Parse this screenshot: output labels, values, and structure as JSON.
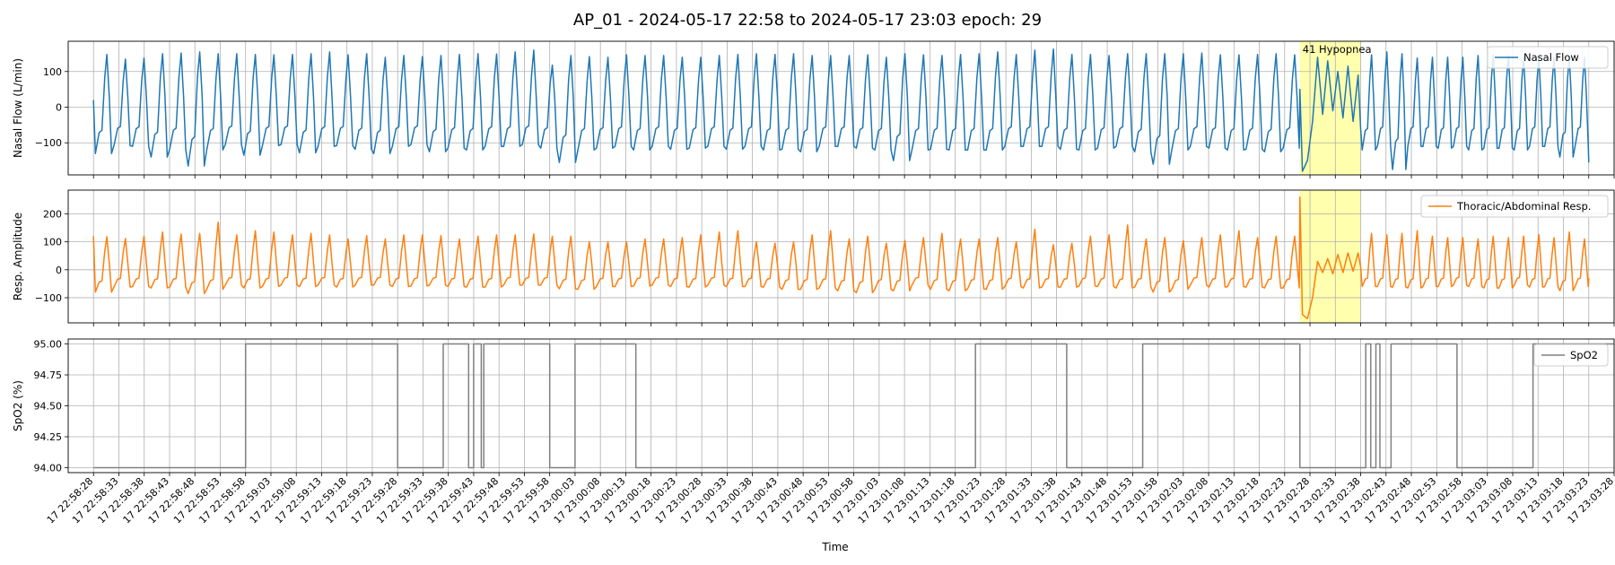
{
  "suptitle": "AP_01 - 2024-05-17 22:58 to 2024-05-17 23:03 epoch: 29",
  "xlabel": "Time",
  "event_label": "41 Hypopnea",
  "colors": {
    "flow": "#1f77b4",
    "resp": "#ff7f0e",
    "spo2": "#808080",
    "event_band": "#ffff99",
    "grid": "#b0b0b0"
  },
  "x_tick_labels": [
    "17 22:58:28",
    "17 22:58:33",
    "17 22:58:38",
    "17 22:58:43",
    "17 22:58:48",
    "17 22:58:53",
    "17 22:58:58",
    "17 22:59:03",
    "17 22:59:08",
    "17 22:59:13",
    "17 22:59:18",
    "17 22:59:23",
    "17 22:59:28",
    "17 22:59:33",
    "17 22:59:38",
    "17 22:59:43",
    "17 22:59:48",
    "17 22:59:53",
    "17 22:59:58",
    "17 23:00:03",
    "17 23:00:08",
    "17 23:00:13",
    "17 23:00:18",
    "17 23:00:23",
    "17 23:00:28",
    "17 23:00:33",
    "17 23:00:38",
    "17 23:00:43",
    "17 23:00:48",
    "17 23:00:53",
    "17 23:00:58",
    "17 23:01:03",
    "17 23:01:08",
    "17 23:01:13",
    "17 23:01:18",
    "17 23:01:23",
    "17 23:01:28",
    "17 23:01:33",
    "17 23:01:38",
    "17 23:01:43",
    "17 23:01:48",
    "17 23:01:53",
    "17 23:01:58",
    "17 23:02:03",
    "17 23:02:08",
    "17 23:02:13",
    "17 23:02:18",
    "17 23:02:23",
    "17 23:02:28",
    "17 23:02:33",
    "17 23:02:38",
    "17 23:02:43",
    "17 23:02:48",
    "17 23:02:53",
    "17 23:02:58",
    "17 23:03:03",
    "17 23:03:08",
    "17 23:03:13",
    "17 23:03:18",
    "17 23:03:23",
    "17 23:03:28"
  ],
  "chart_data": [
    {
      "type": "line",
      "ylabel": "Nasal Flow (L/min)",
      "legend": "Nasal Flow",
      "legend_position": "top-right",
      "grid": true,
      "xlim": [
        "2024-05-17 22:58:23",
        "2024-05-17 23:03:28"
      ],
      "ylim": [
        -190,
        185
      ],
      "y_ticks": [
        -100,
        0,
        100
      ],
      "y_tick_labels": [
        "−100",
        "0",
        "100"
      ],
      "event": {
        "start": "2024-05-17 23:02:26",
        "end": "2024-05-17 23:02:38"
      },
      "series": [
        {
          "name": "Nasal Flow",
          "breath_peaks": [
            148,
            135,
            138,
            150,
            152,
            155,
            150,
            150,
            148,
            147,
            148,
            150,
            155,
            147,
            150,
            140,
            145,
            142,
            145,
            148,
            150,
            149,
            155,
            160,
            118,
            145,
            142,
            140,
            147,
            145,
            145,
            140,
            140,
            145,
            148,
            150,
            148,
            150,
            145,
            145,
            145,
            147,
            140,
            150,
            147,
            145,
            148,
            150,
            155,
            148,
            160,
            163,
            148,
            148,
            145,
            150,
            150,
            150,
            150,
            152,
            147,
            147,
            148,
            150,
            147,
            147,
            155,
            150,
            138,
            140,
            140,
            140,
            145,
            147,
            145,
            140,
            138,
            140,
            140,
            140
          ],
          "breath_troughs": [
            -130,
            -108,
            -110,
            -140,
            -118,
            -165,
            -120,
            -105,
            -135,
            -108,
            -105,
            -128,
            -110,
            -108,
            -118,
            -130,
            -110,
            -105,
            -125,
            -115,
            -120,
            -110,
            -110,
            -105,
            -115,
            -155,
            -120,
            -115,
            -110,
            -120,
            -110,
            -118,
            -115,
            -110,
            -118,
            -110,
            -120,
            -118,
            -125,
            -110,
            -110,
            -115,
            -120,
            -150,
            -120,
            -118,
            -120,
            -120,
            -120,
            -110,
            -110,
            -110,
            -118,
            -120,
            -115,
            -110,
            -125,
            -160,
            -120,
            -110,
            -115,
            -120,
            -118,
            -125,
            -115,
            -120,
            -110,
            -175,
            -110,
            -110,
            -115,
            -110,
            -120,
            -115,
            -115,
            -120,
            -110,
            -110,
            -140,
            -110
          ],
          "start_value": 20,
          "end_value": -155,
          "event_segment": [
            [
              0,
              50
            ],
            [
              0.5,
              -180
            ],
            [
              1.5,
              -150
            ],
            [
              2.5,
              -40
            ],
            [
              3.5,
              140
            ],
            [
              4.5,
              -20
            ],
            [
              5.5,
              130
            ],
            [
              6.5,
              -10
            ],
            [
              7.5,
              100
            ],
            [
              8.5,
              -30
            ],
            [
              9.5,
              115
            ],
            [
              10.5,
              -40
            ],
            [
              11.5,
              90
            ],
            [
              12,
              -60
            ]
          ]
        }
      ]
    },
    {
      "type": "line",
      "ylabel": "Resp. Amplitude",
      "legend": "Thoracic/Abdominal Resp.",
      "legend_position": "top-right",
      "grid": true,
      "xlim": [
        "2024-05-17 22:58:23",
        "2024-05-17 23:03:28"
      ],
      "ylim": [
        -190,
        285
      ],
      "y_ticks": [
        -100,
        0,
        100,
        200
      ],
      "y_tick_labels": [
        "−100",
        "0",
        "100",
        "200"
      ],
      "event": {
        "start": "2024-05-17 23:02:26",
        "end": "2024-05-17 23:02:38"
      },
      "series": [
        {
          "name": "Thoracic/Abdominal Resp.",
          "breath_peaks": [
            118,
            112,
            120,
            135,
            128,
            130,
            170,
            125,
            140,
            135,
            125,
            130,
            125,
            110,
            122,
            110,
            125,
            125,
            122,
            110,
            120,
            125,
            125,
            128,
            120,
            120,
            100,
            100,
            100,
            110,
            110,
            115,
            125,
            135,
            140,
            100,
            95,
            100,
            125,
            140,
            110,
            120,
            95,
            105,
            115,
            130,
            110,
            110,
            115,
            100,
            145,
            90,
            95,
            120,
            125,
            160,
            110,
            115,
            105,
            115,
            125,
            140,
            115,
            120,
            120,
            130,
            125,
            130,
            140,
            120,
            115,
            115,
            110,
            120,
            115,
            120,
            125,
            115,
            135,
            110
          ],
          "breath_troughs": [
            -80,
            -62,
            -60,
            -65,
            -62,
            -85,
            -70,
            -55,
            -65,
            -60,
            -55,
            -60,
            -55,
            -62,
            -55,
            -55,
            -60,
            -58,
            -55,
            -60,
            -62,
            -62,
            -55,
            -55,
            -55,
            -68,
            -70,
            -60,
            -60,
            -58,
            -55,
            -60,
            -62,
            -55,
            -60,
            -60,
            -62,
            -70,
            -70,
            -65,
            -75,
            -82,
            -70,
            -75,
            -55,
            -70,
            -75,
            -68,
            -70,
            -60,
            -65,
            -62,
            -62,
            -58,
            -60,
            -65,
            -62,
            -80,
            -70,
            -55,
            -62,
            -60,
            -62,
            -65,
            -65,
            -60,
            -60,
            -62,
            -65,
            -60,
            -60,
            -55,
            -60,
            -65,
            -65,
            -55,
            -62,
            -60,
            -75,
            -60
          ],
          "start_value": 120,
          "end_value": -30,
          "event_segment": [
            [
              0,
              260
            ],
            [
              0.5,
              -160
            ],
            [
              1.5,
              -175
            ],
            [
              2.5,
              -100
            ],
            [
              3.5,
              30
            ],
            [
              4.5,
              -10
            ],
            [
              5.5,
              40
            ],
            [
              6.5,
              -15
            ],
            [
              7.5,
              55
            ],
            [
              8.5,
              -10
            ],
            [
              9.5,
              60
            ],
            [
              10.5,
              -5
            ],
            [
              11.5,
              60
            ],
            [
              12,
              10
            ]
          ]
        }
      ]
    },
    {
      "type": "line",
      "ylabel": "SpO2 (%)",
      "legend": "SpO2",
      "legend_position": "top-right",
      "grid": true,
      "xlim": [
        "2024-05-17 22:58:23",
        "2024-05-17 23:03:28"
      ],
      "ylim": [
        93.96,
        95.04
      ],
      "y_ticks": [
        94.0,
        94.25,
        94.5,
        94.75,
        95.0
      ],
      "y_tick_labels": [
        "94.00",
        "94.25",
        "94.50",
        "94.75",
        "95.00"
      ],
      "series": [
        {
          "name": "SpO2",
          "segments": [
            {
              "from": "22:58:28",
              "to": "22:58:58",
              "value": 94
            },
            {
              "from": "22:58:58",
              "to": "22:59:28",
              "value": 95
            },
            {
              "from": "22:59:28",
              "to": "22:59:37",
              "value": 94
            },
            {
              "from": "22:59:37",
              "to": "22:59:42",
              "value": 95
            },
            {
              "from": "22:59:42",
              "to": "22:59:43",
              "value": 94
            },
            {
              "from": "22:59:43",
              "to": "22:59:44.5",
              "value": 95
            },
            {
              "from": "22:59:44.5",
              "to": "22:59:45",
              "value": 94
            },
            {
              "from": "22:59:45",
              "to": "22:59:58",
              "value": 95
            },
            {
              "from": "22:59:58",
              "to": "23:00:03",
              "value": 94
            },
            {
              "from": "23:00:03",
              "to": "23:00:15",
              "value": 95
            },
            {
              "from": "23:00:15",
              "to": "23:01:22",
              "value": 94
            },
            {
              "from": "23:01:22",
              "to": "23:01:40",
              "value": 95
            },
            {
              "from": "23:01:40",
              "to": "23:01:55",
              "value": 94
            },
            {
              "from": "23:01:55",
              "to": "23:02:26",
              "value": 95
            },
            {
              "from": "23:02:26",
              "to": "23:02:39",
              "value": 94
            },
            {
              "from": "23:02:39",
              "to": "23:02:40",
              "value": 95
            },
            {
              "from": "23:02:40",
              "to": "23:02:41",
              "value": 94
            },
            {
              "from": "23:02:41",
              "to": "23:02:41.8",
              "value": 95
            },
            {
              "from": "23:02:41.8",
              "to": "23:02:44",
              "value": 94
            },
            {
              "from": "23:02:44",
              "to": "23:02:57",
              "value": 95
            },
            {
              "from": "23:02:57",
              "to": "23:03:12",
              "value": 94
            },
            {
              "from": "23:03:12",
              "to": "23:03:28",
              "value": 95
            }
          ]
        }
      ]
    }
  ]
}
